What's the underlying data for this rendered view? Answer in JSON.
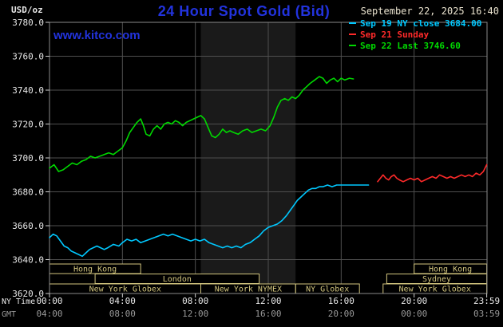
{
  "header": {
    "units": "USD/oz",
    "title": "24 Hour Spot Gold (Bid)",
    "datetime": "September 22, 2025 16:40",
    "watermark": "www.kitco.com"
  },
  "colors": {
    "title_blue": "#2233dd",
    "datetime_text": "#eae3cf",
    "axis_text": "#e8e8e8",
    "gmt_text": "#9a9a9a",
    "grid": "#4f4f4f",
    "border": "#8a8a8a",
    "session": "#d2c57e",
    "band": "#1a1a1a",
    "tick": "#cfcfcf"
  },
  "legend": [
    {
      "label": "Sep 19 NY close 3684.00",
      "color": "#00c8ff"
    },
    {
      "label": "Sep 21 Sunday",
      "color": "#ff2a2a"
    },
    {
      "label": "Sep 22 Last 3746.60",
      "color": "#00d800"
    }
  ],
  "axes": {
    "timezone_row1": "NY Time",
    "timezone_row2": "GMT",
    "x_ticks": [
      {
        "hour": 0,
        "ny": "00:00",
        "gmt": "04:00"
      },
      {
        "hour": 4,
        "ny": "04:00",
        "gmt": "08:00"
      },
      {
        "hour": 8,
        "ny": "08:00",
        "gmt": "12:00"
      },
      {
        "hour": 12,
        "ny": "12:00",
        "gmt": "16:00"
      },
      {
        "hour": 16,
        "ny": "16:00",
        "gmt": "20:00"
      },
      {
        "hour": 20,
        "ny": "20:00",
        "gmt": "00:00"
      },
      {
        "hour": 23.983,
        "ny": "23:59",
        "gmt": "03:59"
      }
    ],
    "y_ticks": [
      3620,
      3640,
      3660,
      3680,
      3700,
      3720,
      3740,
      3760,
      3780
    ]
  },
  "chart_data": {
    "type": "line",
    "title": "24 Hour Spot Gold (Bid)",
    "ylabel": "USD/oz",
    "xlabel": "NY Time (hours)",
    "ylim": [
      3620,
      3780
    ],
    "xlim_hours": [
      0,
      24
    ],
    "grid": true,
    "legend_position": "top-right",
    "nymex_band_hours": [
      8.3,
      13.5
    ],
    "series": [
      {
        "id": "sep19",
        "name": "Sep 19 NY close 3684.00",
        "color": "#00c8ff",
        "points": [
          [
            0,
            3653
          ],
          [
            0.2,
            3655
          ],
          [
            0.4,
            3654
          ],
          [
            0.6,
            3651
          ],
          [
            0.8,
            3648
          ],
          [
            1,
            3647
          ],
          [
            1.2,
            3645
          ],
          [
            1.4,
            3644
          ],
          [
            1.6,
            3643
          ],
          [
            1.8,
            3642
          ],
          [
            2,
            3644
          ],
          [
            2.2,
            3646
          ],
          [
            2.4,
            3647
          ],
          [
            2.6,
            3648
          ],
          [
            2.8,
            3647
          ],
          [
            3,
            3646
          ],
          [
            3.2,
            3647
          ],
          [
            3.5,
            3649
          ],
          [
            3.8,
            3648
          ],
          [
            4,
            3650
          ],
          [
            4.25,
            3652
          ],
          [
            4.5,
            3651
          ],
          [
            4.75,
            3652
          ],
          [
            5,
            3650
          ],
          [
            5.25,
            3651
          ],
          [
            5.5,
            3652
          ],
          [
            5.75,
            3653
          ],
          [
            6,
            3654
          ],
          [
            6.25,
            3655
          ],
          [
            6.5,
            3654
          ],
          [
            6.75,
            3655
          ],
          [
            7,
            3654
          ],
          [
            7.25,
            3653
          ],
          [
            7.5,
            3652
          ],
          [
            7.75,
            3651
          ],
          [
            8,
            3652
          ],
          [
            8.25,
            3651
          ],
          [
            8.5,
            3652
          ],
          [
            8.75,
            3650
          ],
          [
            9,
            3649
          ],
          [
            9.25,
            3648
          ],
          [
            9.5,
            3647
          ],
          [
            9.75,
            3648
          ],
          [
            10,
            3647
          ],
          [
            10.25,
            3648
          ],
          [
            10.5,
            3647
          ],
          [
            10.75,
            3649
          ],
          [
            11,
            3650
          ],
          [
            11.25,
            3652
          ],
          [
            11.5,
            3654
          ],
          [
            11.75,
            3657
          ],
          [
            12,
            3659
          ],
          [
            12.25,
            3660
          ],
          [
            12.5,
            3661
          ],
          [
            12.75,
            3663
          ],
          [
            13,
            3666
          ],
          [
            13.2,
            3669
          ],
          [
            13.4,
            3672
          ],
          [
            13.6,
            3675
          ],
          [
            13.8,
            3677
          ],
          [
            14,
            3679
          ],
          [
            14.2,
            3681
          ],
          [
            14.4,
            3682
          ],
          [
            14.6,
            3682
          ],
          [
            14.8,
            3683
          ],
          [
            15,
            3683
          ],
          [
            15.25,
            3684
          ],
          [
            15.5,
            3683
          ],
          [
            15.75,
            3684
          ],
          [
            16,
            3684
          ],
          [
            16.3,
            3684
          ],
          [
            16.6,
            3684
          ],
          [
            16.9,
            3684
          ],
          [
            17.2,
            3684
          ],
          [
            17.5,
            3684
          ]
        ]
      },
      {
        "id": "sep21",
        "name": "Sep 21 Sunday",
        "color": "#ff2a2a",
        "points": [
          [
            18,
            3686
          ],
          [
            18.15,
            3688
          ],
          [
            18.3,
            3690
          ],
          [
            18.45,
            3688
          ],
          [
            18.6,
            3687
          ],
          [
            18.75,
            3689
          ],
          [
            18.9,
            3690
          ],
          [
            19.05,
            3688
          ],
          [
            19.2,
            3687
          ],
          [
            19.4,
            3686
          ],
          [
            19.6,
            3687
          ],
          [
            19.8,
            3688
          ],
          [
            20,
            3687
          ],
          [
            20.2,
            3688
          ],
          [
            20.4,
            3686
          ],
          [
            20.6,
            3687
          ],
          [
            20.8,
            3688
          ],
          [
            21,
            3689
          ],
          [
            21.2,
            3688
          ],
          [
            21.4,
            3690
          ],
          [
            21.6,
            3689
          ],
          [
            21.8,
            3688
          ],
          [
            22,
            3689
          ],
          [
            22.2,
            3688
          ],
          [
            22.4,
            3689
          ],
          [
            22.6,
            3690
          ],
          [
            22.8,
            3689
          ],
          [
            23,
            3690
          ],
          [
            23.2,
            3689
          ],
          [
            23.4,
            3691
          ],
          [
            23.6,
            3690
          ],
          [
            23.8,
            3692
          ],
          [
            23.983,
            3696
          ]
        ]
      },
      {
        "id": "sep22",
        "name": "Sep 22 Last 3746.60",
        "color": "#00d800",
        "points": [
          [
            0,
            3694
          ],
          [
            0.25,
            3696
          ],
          [
            0.5,
            3692
          ],
          [
            0.75,
            3693
          ],
          [
            1,
            3695
          ],
          [
            1.25,
            3697
          ],
          [
            1.5,
            3696
          ],
          [
            1.75,
            3698
          ],
          [
            2,
            3699
          ],
          [
            2.25,
            3701
          ],
          [
            2.5,
            3700
          ],
          [
            2.75,
            3701
          ],
          [
            3,
            3702
          ],
          [
            3.25,
            3703
          ],
          [
            3.5,
            3702
          ],
          [
            3.75,
            3704
          ],
          [
            4,
            3706
          ],
          [
            4.2,
            3710
          ],
          [
            4.4,
            3715
          ],
          [
            4.6,
            3718
          ],
          [
            4.8,
            3721
          ],
          [
            5,
            3723
          ],
          [
            5.15,
            3719
          ],
          [
            5.3,
            3714
          ],
          [
            5.5,
            3713
          ],
          [
            5.7,
            3717
          ],
          [
            5.9,
            3719
          ],
          [
            6.1,
            3717
          ],
          [
            6.3,
            3720
          ],
          [
            6.5,
            3721
          ],
          [
            6.7,
            3720
          ],
          [
            6.9,
            3722
          ],
          [
            7.1,
            3721
          ],
          [
            7.3,
            3719
          ],
          [
            7.5,
            3721
          ],
          [
            7.7,
            3722
          ],
          [
            7.9,
            3723
          ],
          [
            8.1,
            3724
          ],
          [
            8.3,
            3725
          ],
          [
            8.5,
            3723
          ],
          [
            8.7,
            3718
          ],
          [
            8.9,
            3713
          ],
          [
            9.1,
            3712
          ],
          [
            9.3,
            3714
          ],
          [
            9.5,
            3717
          ],
          [
            9.7,
            3715
          ],
          [
            9.9,
            3716
          ],
          [
            10.1,
            3715
          ],
          [
            10.35,
            3714
          ],
          [
            10.6,
            3716
          ],
          [
            10.85,
            3717
          ],
          [
            11.1,
            3715
          ],
          [
            11.35,
            3716
          ],
          [
            11.6,
            3717
          ],
          [
            11.85,
            3716
          ],
          [
            12.1,
            3719
          ],
          [
            12.3,
            3724
          ],
          [
            12.5,
            3730
          ],
          [
            12.7,
            3734
          ],
          [
            12.9,
            3735
          ],
          [
            13.1,
            3734
          ],
          [
            13.3,
            3736
          ],
          [
            13.5,
            3735
          ],
          [
            13.7,
            3737
          ],
          [
            13.9,
            3740
          ],
          [
            14.1,
            3742
          ],
          [
            14.3,
            3744
          ],
          [
            14.55,
            3746
          ],
          [
            14.8,
            3748
          ],
          [
            15,
            3747
          ],
          [
            15.2,
            3744
          ],
          [
            15.4,
            3746
          ],
          [
            15.6,
            3747
          ],
          [
            15.8,
            3745
          ],
          [
            16,
            3747
          ],
          [
            16.2,
            3746
          ],
          [
            16.45,
            3747
          ],
          [
            16.67,
            3746.6
          ]
        ]
      }
    ],
    "sessions": [
      {
        "label": "Hong Kong",
        "row": 0,
        "start": 0,
        "end": 5
      },
      {
        "label": "London",
        "row": 1,
        "start": 2.5,
        "end": 11.5
      },
      {
        "label": "New York Globex",
        "row": 2,
        "start": 0,
        "end": 8.3
      },
      {
        "label": "New York NYMEX",
        "row": 2,
        "start": 8.3,
        "end": 13.5
      },
      {
        "label": "NY Globex",
        "row": 2,
        "start": 13.5,
        "end": 17
      },
      {
        "label": "Hong Kong",
        "row": 0,
        "start": 20,
        "end": 23.983
      },
      {
        "label": "Sydney",
        "row": 1,
        "start": 18.5,
        "end": 23.983
      },
      {
        "label": "New York Globex",
        "row": 2,
        "start": 18.3,
        "end": 23.983
      }
    ]
  }
}
